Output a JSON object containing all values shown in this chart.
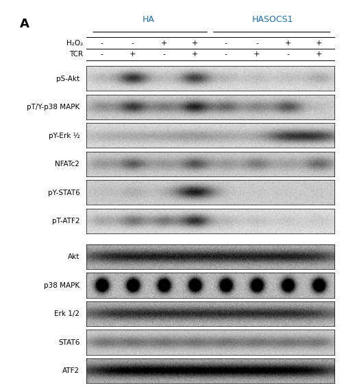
{
  "title_label": "A",
  "group_labels": [
    "HA",
    "HASOCS1"
  ],
  "group_label_color": "#1a6faf",
  "h2o2_row": [
    "-",
    "-",
    "+",
    "+",
    "-",
    "-",
    "+",
    "+"
  ],
  "tcr_row": [
    "-",
    "+",
    "-",
    "+",
    "-",
    "+",
    "-",
    "+"
  ],
  "row_label_h2o2": "H₂O₂",
  "row_label_tcr": "TCR",
  "phospho_bands": [
    "pS-Akt",
    "pT/Y-p38 MAPK",
    "pY-Erk ½",
    "NFATc2",
    "pY-STAT6",
    "pT-ATF2"
  ],
  "total_bands": [
    "Akt",
    "p38 MAPK",
    "Erk 1/2",
    "STAT6",
    "ATF2"
  ],
  "n_lanes": 8,
  "fig_width": 4.83,
  "fig_height": 5.32
}
